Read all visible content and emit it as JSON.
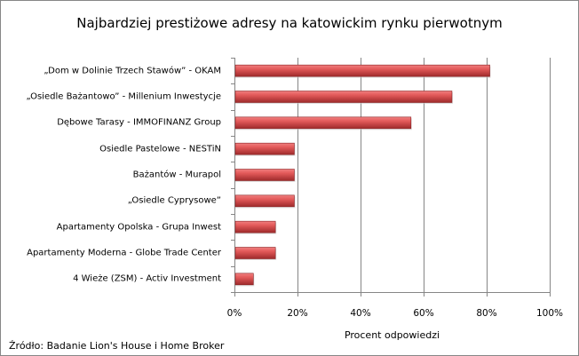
{
  "chart_data": {
    "type": "bar",
    "orientation": "horizontal",
    "title": "Najbardziej prestiżowe adresy na katowickim rynku pierwotnym",
    "xlabel": "Procent odpowiedzi",
    "ylabel": "",
    "xlim": [
      0,
      100
    ],
    "x_ticks": [
      "0%",
      "20%",
      "40%",
      "60%",
      "80%",
      "100%"
    ],
    "grid": true,
    "categories": [
      "„Dom w Dolinie Trzech Stawów” - OKAM",
      "„Osiedle Bażantowo” - Millenium Inwestycje",
      "Dębowe Tarasy - IMMOFINANZ  Group",
      "Osiedle Pastelowe - NESTiN",
      "Bażantów - Murapol",
      "„Osiedle Cyprysowe”",
      "Apartamenty Opolska - Grupa Inwest",
      "Apartamenty Moderna - Globe Trade Center",
      "4 Wieże (ZSM) - Activ Investment"
    ],
    "values": [
      81,
      69,
      56,
      19,
      19,
      19,
      13,
      13,
      6
    ],
    "bar_color": "#c0393b",
    "source": "Źródło: Badanie Lion's House i Home Broker"
  }
}
